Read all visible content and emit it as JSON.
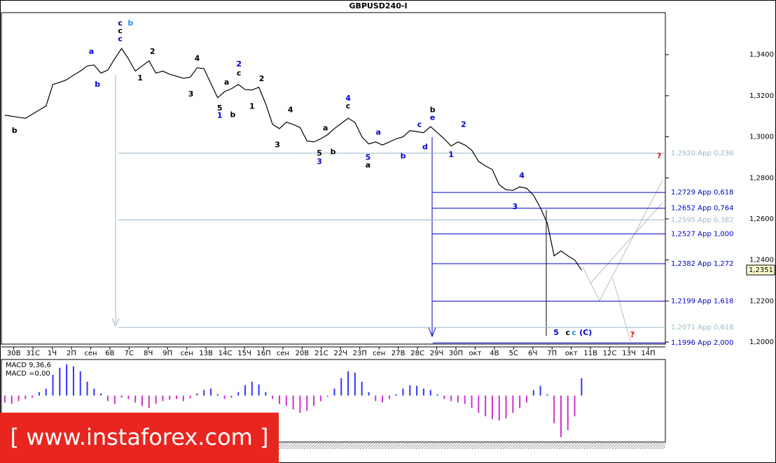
{
  "chart_data": {
    "type": "line",
    "title": "GBPUSD240-I",
    "series": [
      {
        "name": "GBPUSD",
        "color": "#000000",
        "values": [
          1.3105,
          1.31,
          1.3095,
          1.309,
          1.311,
          1.313,
          1.315,
          1.3255,
          1.3265,
          1.3278,
          1.33,
          1.332,
          1.3345,
          1.335,
          1.331,
          1.3325,
          1.338,
          1.343,
          1.338,
          1.332,
          1.3345,
          1.337,
          1.331,
          1.332,
          1.3305,
          1.3295,
          1.3285,
          1.329,
          1.3336,
          1.3332,
          1.326,
          1.319,
          1.322,
          1.3234,
          1.3255,
          1.323,
          1.3228,
          1.3241,
          1.316,
          1.306,
          1.304,
          1.3071,
          1.306,
          1.3045,
          1.298,
          1.2975,
          1.299,
          1.301,
          1.304,
          1.3065,
          1.309,
          1.307,
          1.3,
          1.2965,
          1.2975,
          1.296,
          1.2975,
          1.299,
          1.3,
          1.303,
          1.3025,
          1.302,
          1.305,
          1.302,
          1.299,
          1.2955,
          1.2975,
          1.296,
          1.2935,
          1.288,
          1.2858,
          1.284,
          1.2766,
          1.2742,
          1.2739,
          1.2756,
          1.2749,
          1.2715,
          1.2654,
          1.258,
          1.242,
          1.2444,
          1.242,
          1.24,
          1.2351
        ]
      }
    ],
    "current_price": {
      "value": 1.2351,
      "label": "1,2351"
    },
    "xlim": [
      -0.5,
      96.2
    ],
    "xticks": [
      {
        "value": 1.3,
        "label": "30В"
      },
      {
        "value": 4.1,
        "label": "31С"
      },
      {
        "value": 6.9,
        "label": "1Ч"
      },
      {
        "value": 9.7,
        "label": "2П"
      },
      {
        "value": 12.5,
        "label": "сен"
      },
      {
        "value": 15.3,
        "label": "6В"
      },
      {
        "value": 18.1,
        "label": "7С"
      },
      {
        "value": 20.9,
        "label": "8Ч"
      },
      {
        "value": 23.7,
        "label": "9П"
      },
      {
        "value": 26.5,
        "label": "сен"
      },
      {
        "value": 29.3,
        "label": "13В"
      },
      {
        "value": 32.1,
        "label": "14С"
      },
      {
        "value": 34.9,
        "label": "15Ч"
      },
      {
        "value": 37.7,
        "label": "16П"
      },
      {
        "value": 40.5,
        "label": "сен"
      },
      {
        "value": 43.3,
        "label": "20В"
      },
      {
        "value": 46.1,
        "label": "21С"
      },
      {
        "value": 48.9,
        "label": "22Ч"
      },
      {
        "value": 51.7,
        "label": "23П"
      },
      {
        "value": 54.5,
        "label": "сен"
      },
      {
        "value": 57.3,
        "label": "27В"
      },
      {
        "value": 60.1,
        "label": "28С"
      },
      {
        "value": 62.9,
        "label": "29Ч"
      },
      {
        "value": 65.7,
        "label": "30П"
      },
      {
        "value": 68.5,
        "label": "окт"
      },
      {
        "value": 71.3,
        "label": "4В"
      },
      {
        "value": 74.1,
        "label": "5С"
      },
      {
        "value": 76.9,
        "label": "6Ч"
      },
      {
        "value": 79.7,
        "label": "7П"
      },
      {
        "value": 82.5,
        "label": "окт"
      },
      {
        "value": 85.3,
        "label": "11В"
      },
      {
        "value": 88.1,
        "label": "12С"
      },
      {
        "value": 90.9,
        "label": "13Ч"
      },
      {
        "value": 93.7,
        "label": "14П"
      }
    ],
    "ylim": [
      1.199,
      1.3605
    ],
    "yticks": [
      {
        "value": 1.34,
        "label": "1,3400"
      },
      {
        "value": 1.32,
        "label": "1,3200"
      },
      {
        "value": 1.3,
        "label": "1,3000"
      },
      {
        "value": 1.28,
        "label": "1,2800"
      },
      {
        "value": 1.26,
        "label": "1,2600"
      },
      {
        "value": 1.24,
        "label": "1,2400"
      },
      {
        "value": 1.22,
        "label": "1,2200"
      },
      {
        "value": 1.2,
        "label": "1,2000"
      }
    ],
    "levels": [
      {
        "value": 1.292,
        "label": "1,2920 Арр 0,236",
        "color": "#9bb7c8",
        "from": 16.5
      },
      {
        "value": 1.2729,
        "label": "1,2729 Арр 0,618",
        "color": "#0000cc",
        "from": 62.3
      },
      {
        "value": 1.2652,
        "label": "1,2652 Арр 0,764",
        "color": "#0000cc",
        "from": 62.3
      },
      {
        "value": 1.2595,
        "label": "1,2595 Арр 0,382",
        "color": "#9bb7c8",
        "from": 16.5
      },
      {
        "value": 1.2527,
        "label": "1,2527 Арр 1,000",
        "color": "#0000cc",
        "from": 62.3
      },
      {
        "value": 1.2382,
        "label": "1,2382 Арр 1,272",
        "color": "#0000cc",
        "from": 62.3
      },
      {
        "value": 1.2199,
        "label": "1,2199 Арр 1,618",
        "color": "#0000cc",
        "from": 62.3
      },
      {
        "value": 1.2071,
        "label": "1,2071 Арр 0,618",
        "color": "#9bb7c8",
        "from": 16.5
      },
      {
        "value": 1.1996,
        "label": "1,1996 Арр 2,000",
        "color": "#0000cc",
        "from": 62.3
      }
    ],
    "annotations": [
      {
        "text": "c",
        "x": 16.8,
        "y": 1.3553,
        "color": "#000080"
      },
      {
        "text": "b",
        "x": 18.3,
        "y": 1.3553,
        "color": "#1e90ff"
      },
      {
        "text": "c",
        "x": 16.8,
        "y": 1.3515,
        "color": "#000000"
      },
      {
        "text": "c",
        "x": 16.8,
        "y": 1.3475,
        "color": "#0000cc"
      },
      {
        "text": "a",
        "x": 12.6,
        "y": 1.3414,
        "color": "#0000cc"
      },
      {
        "text": "b",
        "x": 13.5,
        "y": 1.3254,
        "color": "#0000cc"
      },
      {
        "text": "b",
        "x": 1.4,
        "y": 1.303,
        "color": "#000000"
      },
      {
        "text": "2",
        "x": 21.5,
        "y": 1.3414,
        "color": "#000000"
      },
      {
        "text": "1",
        "x": 19.7,
        "y": 1.3285,
        "color": "#000000"
      },
      {
        "text": "4",
        "x": 28,
        "y": 1.338,
        "color": "#000000"
      },
      {
        "text": "3",
        "x": 27.1,
        "y": 1.3207,
        "color": "#000000"
      },
      {
        "text": "2",
        "x": 34.1,
        "y": 1.3353,
        "color": "#0000cc"
      },
      {
        "text": "c",
        "x": 34.1,
        "y": 1.3308,
        "color": "#000000"
      },
      {
        "text": "a",
        "x": 32.3,
        "y": 1.3264,
        "color": "#000000"
      },
      {
        "text": "5",
        "x": 31.3,
        "y": 1.3139,
        "color": "#000000"
      },
      {
        "text": "1",
        "x": 31.3,
        "y": 1.3102,
        "color": "#0000cc"
      },
      {
        "text": "b",
        "x": 33.2,
        "y": 1.3105,
        "color": "#000000"
      },
      {
        "text": "2",
        "x": 37.4,
        "y": 1.3281,
        "color": "#000000"
      },
      {
        "text": "1",
        "x": 36,
        "y": 1.3146,
        "color": "#000000"
      },
      {
        "text": "4",
        "x": 41.6,
        "y": 1.3129,
        "color": "#000000"
      },
      {
        "text": "3",
        "x": 39.7,
        "y": 1.2959,
        "color": "#000000"
      },
      {
        "text": "a",
        "x": 46.7,
        "y": 1.3041,
        "color": "#000000"
      },
      {
        "text": "5",
        "x": 45.8,
        "y": 1.2919,
        "color": "#000000"
      },
      {
        "text": "3",
        "x": 45.8,
        "y": 1.2878,
        "color": "#0000cc"
      },
      {
        "text": "b",
        "x": 47.8,
        "y": 1.2925,
        "color": "#000000"
      },
      {
        "text": "4",
        "x": 50,
        "y": 1.3186,
        "color": "#0000cc"
      },
      {
        "text": "c",
        "x": 50,
        "y": 1.3149,
        "color": "#000000"
      },
      {
        "text": "a",
        "x": 54.4,
        "y": 1.302,
        "color": "#0000cc"
      },
      {
        "text": "5",
        "x": 52.9,
        "y": 1.2898,
        "color": "#0000cc"
      },
      {
        "text": "a",
        "x": 52.9,
        "y": 1.2861,
        "color": "#000000"
      },
      {
        "text": "b",
        "x": 58,
        "y": 1.2905,
        "color": "#0000cc"
      },
      {
        "text": "c",
        "x": 60.4,
        "y": 1.3058,
        "color": "#0000cc"
      },
      {
        "text": "b",
        "x": 62.3,
        "y": 1.3129,
        "color": "#000000"
      },
      {
        "text": "e",
        "x": 62.3,
        "y": 1.3092,
        "color": "#0000cc"
      },
      {
        "text": "d",
        "x": 61.2,
        "y": 1.2949,
        "color": "#0000cc"
      },
      {
        "text": "2",
        "x": 66.8,
        "y": 1.3058,
        "color": "#0000cc"
      },
      {
        "text": "1",
        "x": 65,
        "y": 1.2912,
        "color": "#0000cc"
      },
      {
        "text": "4",
        "x": 75.3,
        "y": 1.281,
        "color": "#0000cc"
      },
      {
        "text": "3",
        "x": 74.3,
        "y": 1.2658,
        "color": "#0000cc"
      },
      {
        "text": "5",
        "x": 80.3,
        "y": 1.2044,
        "color": "#0000cc"
      },
      {
        "text": "c",
        "x": 82,
        "y": 1.2044,
        "color": "#000000"
      },
      {
        "text": "c",
        "x": 82.9,
        "y": 1.2044,
        "color": "#1e90ff"
      },
      {
        "text": "(C)",
        "x": 84.6,
        "y": 1.2044,
        "color": "#0000cc"
      },
      {
        "text": "?",
        "x": 95.3,
        "y": 1.2905,
        "color": "#e00000"
      },
      {
        "text": "?",
        "x": 91.4,
        "y": 1.2034,
        "color": "#e00000"
      }
    ],
    "macd": {
      "title": "MACD 9,36,6",
      "value_text": "MACD =0,00",
      "ylim": [
        -65,
        50
      ],
      "positive_color": "#3333ff",
      "negative_color": "#cc33cc",
      "values": [
        -10,
        -12,
        -8,
        -5,
        -3,
        5,
        10,
        30,
        40,
        45,
        42,
        35,
        20,
        10,
        3,
        -8,
        -12,
        -3,
        -5,
        -10,
        -15,
        -18,
        -12,
        -8,
        -6,
        -5,
        -8,
        -4,
        3,
        8,
        10,
        2,
        -5,
        -3,
        5,
        15,
        20,
        16,
        5,
        -5,
        -12,
        -15,
        -20,
        -25,
        -22,
        -15,
        -8,
        -2,
        10,
        25,
        35,
        33,
        20,
        5,
        -8,
        -10,
        -5,
        2,
        10,
        15,
        14,
        10,
        8,
        2,
        -5,
        -8,
        -10,
        -12,
        -18,
        -25,
        -30,
        -34,
        -36,
        -33,
        -25,
        -18,
        -10,
        8,
        14,
        2,
        -40,
        -60,
        -50,
        -30,
        25
      ]
    },
    "watermark": "[ www.instaforex.com ]"
  }
}
